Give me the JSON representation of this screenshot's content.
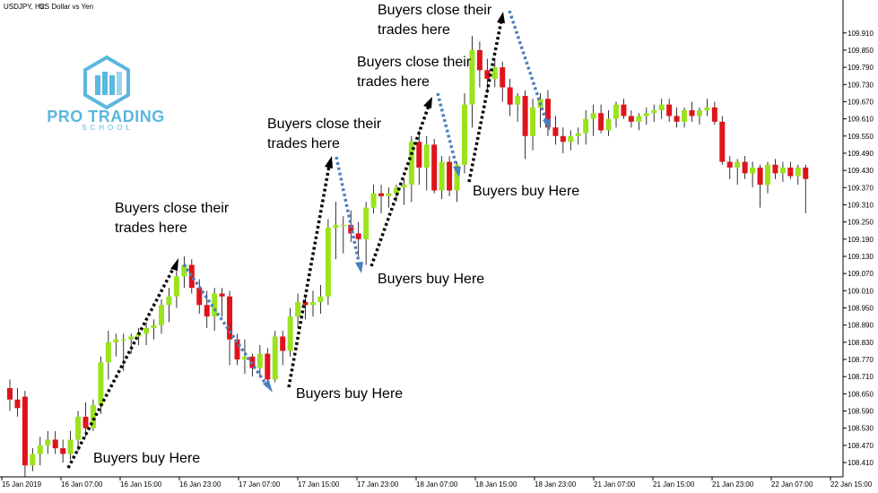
{
  "header": {
    "symbol": "USDJPY, H1:",
    "description": "US Dollar vs Yen"
  },
  "logo": {
    "line1": "PRO TRADING",
    "line2": "SCHOOL"
  },
  "colors": {
    "bull": "#9be31d",
    "bear": "#e0131b",
    "wick": "#000000",
    "buy_arrow": "#4a7fc0",
    "close_arrow": "#000000",
    "logo": "#5bb8df"
  },
  "annotations": {
    "close1": [
      "Buyers close their",
      "trades here"
    ],
    "close2": [
      "Buyers close their",
      "trades here"
    ],
    "close3": [
      "Buyers close their",
      "trades here"
    ],
    "close4": [
      "Buyers close their",
      "trades here"
    ],
    "buy1": "Buyers buy Here",
    "buy2": "Buyers buy Here",
    "buy3": "Buyers buy Here",
    "buy4": "Buyers buy Here"
  },
  "chart_data": {
    "type": "candlestick",
    "grid": false,
    "ylim": [
      108.36,
      110.0
    ],
    "y_ticks": [
      "109.910",
      "109.850",
      "109.790",
      "109.730",
      "109.670",
      "109.610",
      "109.550",
      "109.490",
      "109.430",
      "109.370",
      "109.310",
      "109.250",
      "109.190",
      "109.130",
      "109.070",
      "109.010",
      "108.950",
      "108.890",
      "108.830",
      "108.770",
      "108.710",
      "108.650",
      "108.590",
      "108.530",
      "108.470",
      "108.410"
    ],
    "x_ticks": [
      "15 Jan 2019",
      "16 Jan 07:00",
      "16 Jan 15:00",
      "16 Jan 23:00",
      "17 Jan 07:00",
      "17 Jan 15:00",
      "17 Jan 23:00",
      "18 Jan 07:00",
      "18 Jan 15:00",
      "18 Jan 23:00",
      "21 Jan 07:00",
      "21 Jan 15:00",
      "21 Jan 23:00",
      "22 Jan 07:00",
      "22 Jan 15:00"
    ],
    "ohlc": [
      [
        108.67,
        108.7,
        108.59,
        108.63
      ],
      [
        108.63,
        108.67,
        108.57,
        108.6
      ],
      [
        108.64,
        108.66,
        108.36,
        108.4
      ],
      [
        108.4,
        108.46,
        108.38,
        108.44
      ],
      [
        108.44,
        108.5,
        108.4,
        108.47
      ],
      [
        108.47,
        108.52,
        108.44,
        108.49
      ],
      [
        108.49,
        108.52,
        108.44,
        108.46
      ],
      [
        108.46,
        108.49,
        108.41,
        108.44
      ],
      [
        108.44,
        108.52,
        108.42,
        108.49
      ],
      [
        108.49,
        108.59,
        108.45,
        108.57
      ],
      [
        108.57,
        108.62,
        108.5,
        108.53
      ],
      [
        108.53,
        108.63,
        108.52,
        108.61
      ],
      [
        108.61,
        108.78,
        108.58,
        108.76
      ],
      [
        108.76,
        108.87,
        108.7,
        108.83
      ],
      [
        108.83,
        108.86,
        108.78,
        108.84
      ],
      [
        108.84,
        108.86,
        108.73,
        108.84
      ],
      [
        108.84,
        108.86,
        108.79,
        108.85
      ],
      [
        108.85,
        108.88,
        108.82,
        108.86
      ],
      [
        108.86,
        108.9,
        108.82,
        108.88
      ],
      [
        108.88,
        108.91,
        108.84,
        108.89
      ],
      [
        108.89,
        108.98,
        108.86,
        108.96
      ],
      [
        108.96,
        109.02,
        108.9,
        108.99
      ],
      [
        108.99,
        109.08,
        108.95,
        109.06
      ],
      [
        109.06,
        109.13,
        109.02,
        109.1
      ],
      [
        109.1,
        109.12,
        109.0,
        109.02
      ],
      [
        109.02,
        109.05,
        108.93,
        108.96
      ],
      [
        108.96,
        109.01,
        108.88,
        108.92
      ],
      [
        108.92,
        109.02,
        108.87,
        109.0
      ],
      [
        109.0,
        109.02,
        108.92,
        108.99
      ],
      [
        108.99,
        109.01,
        108.75,
        108.84
      ],
      [
        108.84,
        108.86,
        108.75,
        108.77
      ],
      [
        108.77,
        108.84,
        108.72,
        108.78
      ],
      [
        108.78,
        108.79,
        108.71,
        108.74
      ],
      [
        108.74,
        108.82,
        108.71,
        108.79
      ],
      [
        108.79,
        108.81,
        108.69,
        108.7
      ],
      [
        108.7,
        108.87,
        108.69,
        108.85
      ],
      [
        108.85,
        108.87,
        108.75,
        108.8
      ],
      [
        108.8,
        108.95,
        108.78,
        108.92
      ],
      [
        108.92,
        109.0,
        108.88,
        108.97
      ],
      [
        108.97,
        108.99,
        108.91,
        108.96
      ],
      [
        108.96,
        109.01,
        108.92,
        108.97
      ],
      [
        108.97,
        109.03,
        108.93,
        108.99
      ],
      [
        108.99,
        109.26,
        108.96,
        109.23
      ],
      [
        109.23,
        109.32,
        109.12,
        109.24
      ],
      [
        109.24,
        109.27,
        109.14,
        109.24
      ],
      [
        109.24,
        109.29,
        109.18,
        109.21
      ],
      [
        109.21,
        109.25,
        109.12,
        109.19
      ],
      [
        109.19,
        109.32,
        109.1,
        109.3
      ],
      [
        109.3,
        109.38,
        109.28,
        109.35
      ],
      [
        109.35,
        109.38,
        109.28,
        109.34
      ],
      [
        109.34,
        109.37,
        109.3,
        109.35
      ],
      [
        109.35,
        109.38,
        109.32,
        109.37
      ],
      [
        109.37,
        109.4,
        109.31,
        109.38
      ],
      [
        109.38,
        109.55,
        109.32,
        109.53
      ],
      [
        109.53,
        109.57,
        109.38,
        109.44
      ],
      [
        109.44,
        109.55,
        109.36,
        109.52
      ],
      [
        109.52,
        109.54,
        109.35,
        109.36
      ],
      [
        109.36,
        109.48,
        109.33,
        109.46
      ],
      [
        109.46,
        109.48,
        109.34,
        109.36
      ],
      [
        109.36,
        109.46,
        109.32,
        109.45
      ],
      [
        109.45,
        109.7,
        109.42,
        109.66
      ],
      [
        109.66,
        109.9,
        109.58,
        109.85
      ],
      [
        109.85,
        109.88,
        109.72,
        109.78
      ],
      [
        109.78,
        109.82,
        109.7,
        109.75
      ],
      [
        109.75,
        109.82,
        109.72,
        109.79
      ],
      [
        109.79,
        109.81,
        109.67,
        109.72
      ],
      [
        109.72,
        109.75,
        109.62,
        109.66
      ],
      [
        109.66,
        109.7,
        109.6,
        109.69
      ],
      [
        109.69,
        109.71,
        109.47,
        109.55
      ],
      [
        109.55,
        109.68,
        109.5,
        109.65
      ],
      [
        109.65,
        109.7,
        109.58,
        109.68
      ],
      [
        109.68,
        109.71,
        109.55,
        109.58
      ],
      [
        109.58,
        109.62,
        109.52,
        109.55
      ],
      [
        109.55,
        109.58,
        109.49,
        109.53
      ],
      [
        109.53,
        109.57,
        109.5,
        109.55
      ],
      [
        109.55,
        109.58,
        109.52,
        109.56
      ],
      [
        109.56,
        109.64,
        109.52,
        109.61
      ],
      [
        109.61,
        109.66,
        109.55,
        109.63
      ],
      [
        109.63,
        109.66,
        109.56,
        109.57
      ],
      [
        109.57,
        109.64,
        109.55,
        109.61
      ],
      [
        109.61,
        109.67,
        109.58,
        109.66
      ],
      [
        109.66,
        109.68,
        109.61,
        109.62
      ],
      [
        109.62,
        109.64,
        109.58,
        109.6
      ],
      [
        109.6,
        109.63,
        109.57,
        109.62
      ],
      [
        109.62,
        109.65,
        109.59,
        109.63
      ],
      [
        109.63,
        109.66,
        109.6,
        109.64
      ],
      [
        109.64,
        109.68,
        109.61,
        109.66
      ],
      [
        109.66,
        109.68,
        109.6,
        109.62
      ],
      [
        109.62,
        109.65,
        109.58,
        109.6
      ],
      [
        109.6,
        109.65,
        109.58,
        109.64
      ],
      [
        109.64,
        109.67,
        109.6,
        109.62
      ],
      [
        109.62,
        109.65,
        109.59,
        109.64
      ],
      [
        109.64,
        109.68,
        109.62,
        109.65
      ],
      [
        109.65,
        109.67,
        109.59,
        109.6
      ],
      [
        109.6,
        109.62,
        109.45,
        109.46
      ],
      [
        109.46,
        109.48,
        109.4,
        109.44
      ],
      [
        109.44,
        109.47,
        109.38,
        109.46
      ],
      [
        109.46,
        109.48,
        109.4,
        109.42
      ],
      [
        109.42,
        109.46,
        109.37,
        109.44
      ],
      [
        109.44,
        109.45,
        109.3,
        109.38
      ],
      [
        109.38,
        109.46,
        109.35,
        109.45
      ],
      [
        109.45,
        109.47,
        109.4,
        109.42
      ],
      [
        109.42,
        109.46,
        109.39,
        109.44
      ],
      [
        109.44,
        109.46,
        109.4,
        109.41
      ],
      [
        109.41,
        109.45,
        109.38,
        109.44
      ],
      [
        109.44,
        109.45,
        109.28,
        109.4
      ]
    ]
  }
}
